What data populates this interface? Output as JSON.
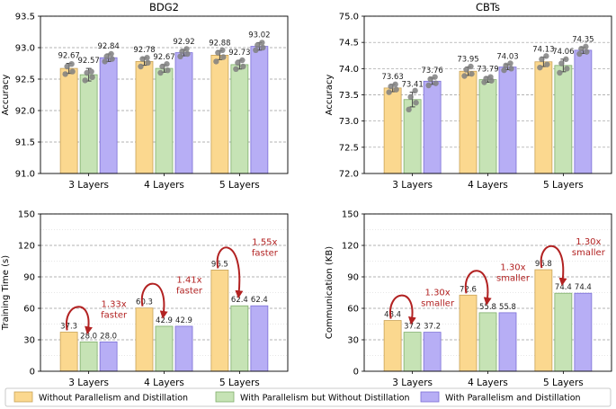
{
  "colors": {
    "series": [
      "#fbd88f",
      "#c6e3b5",
      "#b7aef5"
    ],
    "edge": [
      "#c9a257",
      "#7fae6b",
      "#7b6fd6"
    ],
    "scatter": "#808080",
    "annotation": "#b22222",
    "grid": "#9a9a9a"
  },
  "legend": {
    "items": [
      "Without Parallelism and Distillation",
      "With Parallelism but Without Distillation",
      "With Parallelism and Distillation"
    ]
  },
  "chart_data": [
    {
      "id": "bdg2-accuracy",
      "type": "bar",
      "title": "BDG2",
      "xlabel": "",
      "ylabel": "Accuracy",
      "categories": [
        "3 Layers",
        "4 Layers",
        "5 Layers"
      ],
      "ylim": [
        91.0,
        93.5
      ],
      "yticks": [
        91.0,
        91.5,
        92.0,
        92.5,
        93.0,
        93.5
      ],
      "tick_decimals": 1,
      "value_decimals": 2,
      "series": [
        {
          "name": "Without Parallelism and Distillation",
          "values": [
            92.67,
            92.78,
            92.88
          ],
          "errors": [
            0.08,
            0.06,
            0.07
          ],
          "points": [
            [
              92.58,
              92.62,
              92.7,
              92.74
            ],
            [
              92.7,
              92.76,
              92.82,
              92.84
            ],
            [
              92.78,
              92.85,
              92.92,
              92.96
            ]
          ]
        },
        {
          "name": "With Parallelism but Without Distillation",
          "values": [
            92.57,
            92.67,
            92.73
          ],
          "errors": [
            0.1,
            0.06,
            0.07
          ],
          "points": [
            [
              92.48,
              92.53,
              92.6,
              92.62
            ],
            [
              92.6,
              92.64,
              92.7,
              92.74
            ],
            [
              92.66,
              92.7,
              92.76,
              92.8
            ]
          ]
        },
        {
          "name": "With Parallelism and Distillation",
          "values": [
            92.84,
            92.92,
            93.02
          ],
          "errors": [
            0.06,
            0.05,
            0.06
          ],
          "points": [
            [
              92.78,
              92.82,
              92.86,
              92.9
            ],
            [
              92.86,
              92.9,
              92.94,
              92.98
            ],
            [
              92.96,
              93.0,
              93.04,
              93.08
            ]
          ]
        }
      ],
      "annotations": []
    },
    {
      "id": "cbts-accuracy",
      "type": "bar",
      "title": "CBTs",
      "xlabel": "",
      "ylabel": "Accuracy",
      "categories": [
        "3 Layers",
        "4 Layers",
        "5 Layers"
      ],
      "ylim": [
        72.0,
        75.0
      ],
      "yticks": [
        72.0,
        72.5,
        73.0,
        73.5,
        74.0,
        74.5,
        75.0
      ],
      "tick_decimals": 1,
      "value_decimals": 2,
      "series": [
        {
          "name": "Without Parallelism and Distillation",
          "values": [
            73.63,
            73.95,
            74.13
          ],
          "errors": [
            0.07,
            0.08,
            0.09
          ],
          "points": [
            [
              73.55,
              73.6,
              73.66,
              73.7
            ],
            [
              73.86,
              73.9,
              73.98,
              74.04
            ],
            [
              74.02,
              74.08,
              74.18,
              74.24
            ]
          ]
        },
        {
          "name": "With Parallelism but Without Distillation",
          "values": [
            73.41,
            73.79,
            74.06
          ],
          "errors": [
            0.14,
            0.05,
            0.12
          ],
          "points": [
            [
              73.22,
              73.35,
              73.46,
              73.58
            ],
            [
              73.74,
              73.77,
              73.81,
              73.84
            ],
            [
              73.92,
              74.0,
              74.1,
              74.18
            ]
          ]
        },
        {
          "name": "With Parallelism and Distillation",
          "values": [
            73.76,
            74.03,
            74.35
          ],
          "errors": [
            0.06,
            0.05,
            0.06
          ],
          "points": [
            [
              73.68,
              73.72,
              73.8,
              73.84
            ],
            [
              73.97,
              74.0,
              74.06,
              74.1
            ],
            [
              74.28,
              74.32,
              74.38,
              74.42
            ]
          ]
        }
      ],
      "annotations": []
    },
    {
      "id": "bdg2-time",
      "type": "bar",
      "title": "",
      "xlabel": "",
      "ylabel": "Training Time (s)",
      "categories": [
        "3 Layers",
        "4 Layers",
        "5 Layers"
      ],
      "ylim": [
        0,
        150
      ],
      "yticks": [
        0,
        30,
        60,
        90,
        120,
        150
      ],
      "tick_decimals": 0,
      "value_decimals": 1,
      "series": [
        {
          "name": "Without Parallelism and Distillation",
          "values": [
            37.3,
            60.3,
            96.5
          ]
        },
        {
          "name": "With Parallelism but Without Distillation",
          "values": [
            28.0,
            42.9,
            62.4
          ]
        },
        {
          "name": "With Parallelism and Distillation",
          "values": [
            28.0,
            42.9,
            62.4
          ]
        }
      ],
      "annotations": [
        {
          "category": 0,
          "line1": "1.33x",
          "line2": "faster"
        },
        {
          "category": 1,
          "line1": "1.41x",
          "line2": "faster"
        },
        {
          "category": 2,
          "line1": "1.55x",
          "line2": "faster"
        }
      ]
    },
    {
      "id": "cbts-communication",
      "type": "bar",
      "title": "",
      "xlabel": "",
      "ylabel": "Communication (KB)",
      "categories": [
        "3 Layers",
        "4 Layers",
        "5 Layers"
      ],
      "ylim": [
        0,
        150
      ],
      "yticks": [
        0,
        30,
        60,
        90,
        120,
        150
      ],
      "tick_decimals": 0,
      "value_decimals": 1,
      "series": [
        {
          "name": "Without Parallelism and Distillation",
          "values": [
            48.4,
            72.6,
            96.8
          ]
        },
        {
          "name": "With Parallelism but Without Distillation",
          "values": [
            37.2,
            55.8,
            74.4
          ]
        },
        {
          "name": "With Parallelism and Distillation",
          "values": [
            37.2,
            55.8,
            74.4
          ]
        }
      ],
      "annotations": [
        {
          "category": 0,
          "line1": "1.30x",
          "line2": "smaller"
        },
        {
          "category": 1,
          "line1": "1.30x",
          "line2": "smaller"
        },
        {
          "category": 2,
          "line1": "1.30x",
          "line2": "smaller"
        }
      ]
    }
  ]
}
